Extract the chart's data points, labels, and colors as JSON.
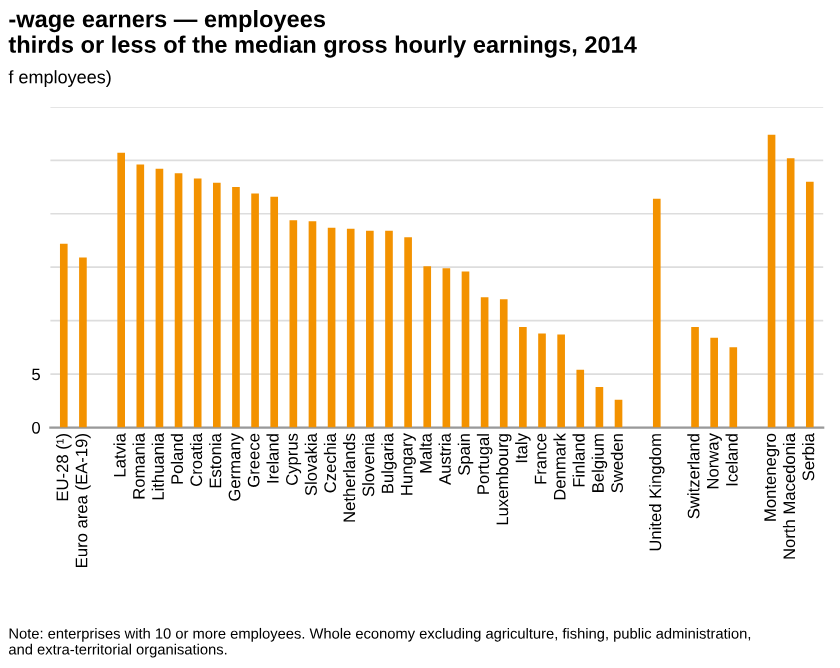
{
  "chart_data": {
    "type": "bar",
    "title": "-wage earners — employees\nthirds or less of the median gross hourly earnings, 2014",
    "subtitle": "f employees)",
    "categories": [
      "EU-28 (¹)",
      "Euro area (EA-19)",
      null,
      "Latvia",
      "Romania",
      "Lithuania",
      "Poland",
      "Croatia",
      "Estonia",
      "Germany",
      "Greece",
      "Ireland",
      "Cyprus",
      "Slovakia",
      "Czechia",
      "Netherlands",
      "Slovenia",
      "Bulgaria",
      "Hungary",
      "Malta",
      "Austria",
      "Spain",
      "Portugal",
      "Luxembourg",
      "Italy",
      "France",
      "Denmark",
      "Finland",
      "Belgium",
      "Sweden",
      null,
      "United Kingdom",
      null,
      "Switzerland",
      "Norway",
      "Iceland",
      null,
      "Montenegro",
      "North Macedonia",
      "Serbia"
    ],
    "values": [
      17.2,
      15.9,
      null,
      25.7,
      24.6,
      24.2,
      23.8,
      23.3,
      22.9,
      22.5,
      21.9,
      21.6,
      19.4,
      19.3,
      18.7,
      18.6,
      18.4,
      18.4,
      17.8,
      15.1,
      14.9,
      14.6,
      12.2,
      12.0,
      9.4,
      8.8,
      8.7,
      5.4,
      3.8,
      2.6,
      null,
      21.4,
      null,
      9.4,
      8.4,
      7.5,
      null,
      27.4,
      25.2,
      23.0
    ],
    "color": "#f39200",
    "ylim": [
      0,
      30
    ],
    "yticks": [
      0,
      5,
      {
        "value": 10,
        "label": null
      },
      {
        "value": 15,
        "label": null
      },
      {
        "value": 20,
        "label": null
      },
      {
        "value": 25,
        "label": null
      },
      {
        "value": 30,
        "label": null
      }
    ],
    "grid": "y",
    "annotations": [
      "Note: enterprises with 10 or more employees. Whole economy excluding agriculture, fishing, public administration,\nand extra-territorial organisations."
    ]
  }
}
